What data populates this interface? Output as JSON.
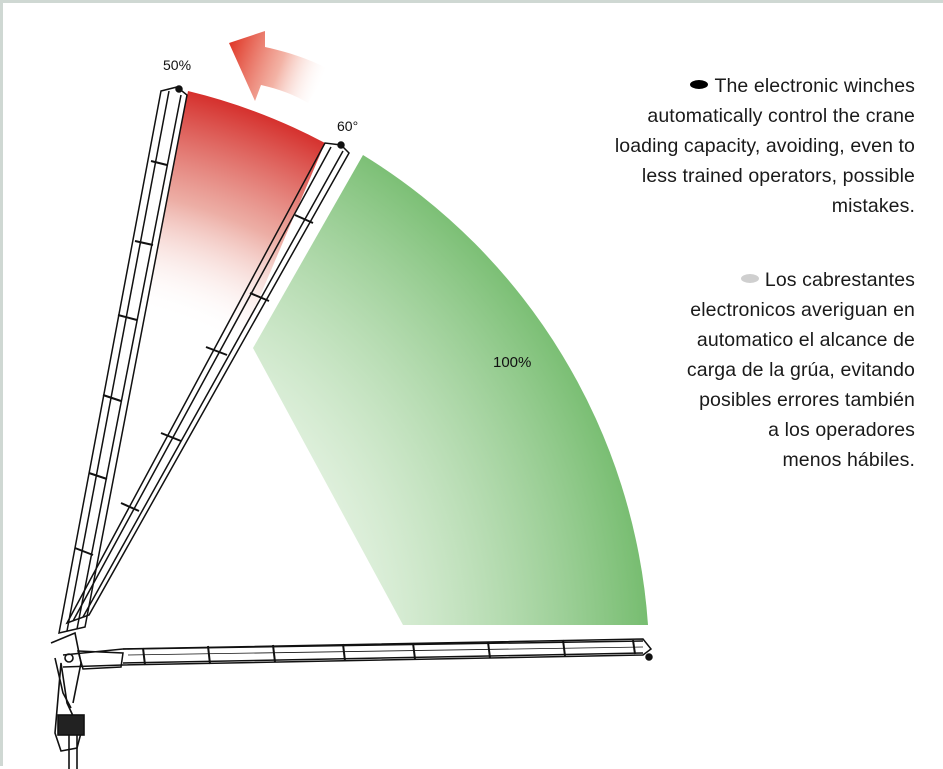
{
  "labels": {
    "angle_max_percent": "50%",
    "angle_mid_degrees": "60°",
    "working_zone_percent": "100%"
  },
  "colors": {
    "reduced_zone": "#d42a27",
    "full_zone": "#6fb968",
    "arrow": "#e03a2a",
    "bullet_en": "#000000",
    "bullet_es": "#cfcfcf",
    "crane_stroke": "#111111"
  },
  "icons": {
    "rotation_arrow": "arrow-up-left-icon",
    "bullet_en": "ellipse-black-icon",
    "bullet_es": "ellipse-gray-icon"
  },
  "text_en": {
    "lines": [
      "The electronic winches",
      "automatically control the crane",
      "loading capacity, avoiding, even to",
      "less trained operators, possible",
      "mistakes."
    ]
  },
  "text_es": {
    "lines": [
      "Los cabrestantes",
      "electronicos averiguan en",
      "automatico el alcance de",
      "carga de la grúa, evitando",
      "posibles errores también",
      "a los operadores",
      "menos hábiles."
    ]
  }
}
